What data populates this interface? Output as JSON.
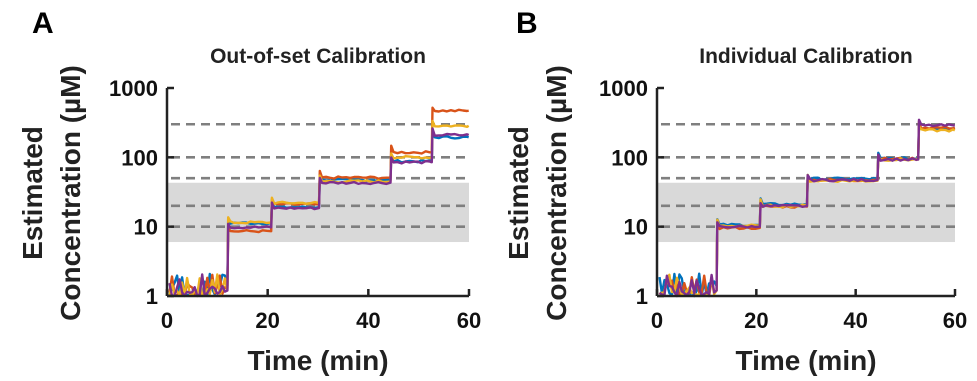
{
  "chart_data": [
    {
      "type": "line",
      "panel_label": "A",
      "title": "Out-of-set Calibration",
      "xlabel": "Time (min)",
      "ylabel": [
        "Estimated",
        "Concentration (µM)"
      ],
      "xlim": [
        0,
        60
      ],
      "ylim": [
        1,
        1000
      ],
      "yscale": "log",
      "x_ticks": [
        0,
        20,
        40,
        60
      ],
      "y_ticks": [
        1,
        10,
        100,
        1000
      ],
      "y_tick_labels": [
        "1",
        "10",
        "100",
        "1000"
      ],
      "grid": false,
      "shaded_band": {
        "y0": 6,
        "y1": 43,
        "color": "#d9d9d9"
      },
      "reference_lines": [
        10,
        20,
        50,
        100,
        300
      ],
      "reference_line_color": "#7f7f7f",
      "step_times": [
        0,
        12,
        20.7,
        30.2,
        44.4,
        52.6,
        60
      ],
      "series": [
        {
          "color": "#0072bd",
          "levels": [
            1.4,
            11.3,
            19.0,
            47,
            88,
            195
          ]
        },
        {
          "color": "#d95319",
          "levels": [
            1.3,
            8.6,
            21.0,
            51,
            118,
            470
          ]
        },
        {
          "color": "#edb120",
          "levels": [
            1.2,
            11.5,
            22.0,
            45,
            100,
            285
          ]
        },
        {
          "color": "#7e2f8e",
          "levels": [
            1.2,
            9.8,
            18.5,
            43,
            85,
            210
          ]
        }
      ]
    },
    {
      "type": "line",
      "panel_label": "B",
      "title": "Individual Calibration",
      "xlabel": "Time (min)",
      "ylabel": [
        "Estimated",
        "Concentration (µM)"
      ],
      "xlim": [
        0,
        60
      ],
      "ylim": [
        1,
        1000
      ],
      "yscale": "log",
      "x_ticks": [
        0,
        20,
        40,
        60
      ],
      "y_ticks": [
        1,
        10,
        100,
        1000
      ],
      "y_tick_labels": [
        "1",
        "10",
        "100",
        "1000"
      ],
      "grid": false,
      "shaded_band": {
        "y0": 6,
        "y1": 43,
        "color": "#d9d9d9"
      },
      "reference_lines": [
        10,
        20,
        50,
        100,
        300
      ],
      "reference_line_color": "#7f7f7f",
      "step_times": [
        0,
        12,
        20.7,
        30.2,
        44.4,
        52.6,
        60
      ],
      "series": [
        {
          "color": "#0072bd",
          "levels": [
            1.4,
            10.6,
            21.0,
            49,
            96,
            262
          ]
        },
        {
          "color": "#d95319",
          "levels": [
            1.2,
            9.6,
            19.5,
            47,
            95,
            268
          ]
        },
        {
          "color": "#edb120",
          "levels": [
            1.2,
            10.3,
            20.0,
            46,
            93,
            245
          ]
        },
        {
          "color": "#7e2f8e",
          "levels": [
            1.2,
            10.0,
            19.8,
            47,
            93,
            288
          ]
        }
      ]
    }
  ]
}
